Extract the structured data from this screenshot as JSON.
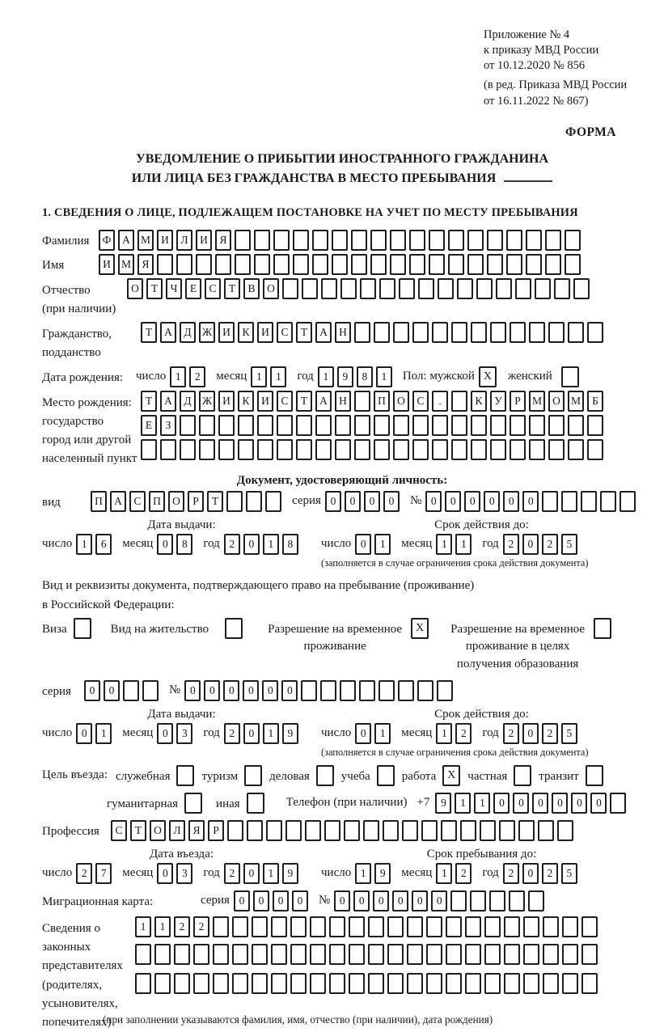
{
  "header": {
    "appendix_line1": "Приложение № 4",
    "appendix_line2": "к приказу МВД России",
    "appendix_line3": "от 10.12.2020 № 856",
    "revision_line1": "(в ред. Приказа МВД России",
    "revision_line2": "от 16.11.2022 № 867)",
    "form_label": "ФОРМА"
  },
  "title": {
    "line1": "УВЕДОМЛЕНИЕ О ПРИБЫТИИ ИНОСТРАННОГО ГРАЖДАНИНА",
    "line2": "ИЛИ ЛИЦА БЕЗ ГРАЖДАНСТВА В МЕСТО ПРЕБЫВАНИЯ"
  },
  "section1_heading": "1. СВЕДЕНИЯ О ЛИЦЕ, ПОДЛЕЖАЩЕМ ПОСТАНОВКЕ НА УЧЕТ ПО МЕСТУ ПРЕБЫВАНИЯ",
  "date_labels": {
    "day": "число",
    "month": "месяц",
    "year": "год"
  },
  "surname": {
    "label": "Фамилия",
    "value": "ФАМИЛИЯ"
  },
  "firstname": {
    "label": "Имя",
    "value": "ИМЯ"
  },
  "patronymic": {
    "label1": "Отчество",
    "label2": "(при наличии)",
    "value": "ОТЧЕСТВО"
  },
  "citizenship": {
    "label1": "Гражданство,",
    "label2": "подданство",
    "value": "ТАДЖИКИСТАН"
  },
  "birth_date": {
    "label": "Дата рождения:",
    "day": "12",
    "month": "11",
    "year": "1981",
    "sex_label": "Пол: мужской",
    "male_value": "X",
    "female_label": "женский",
    "female_value": ""
  },
  "birth_place": {
    "label1": "Место рождения:",
    "label2": "государство",
    "label3": "город или другой",
    "label4": "населенный пункт",
    "row1": "ТАДЖИКИСТАН ПОС. КУРМОМБ",
    "row2": "ЕЗ",
    "row3": ""
  },
  "identity_doc": {
    "heading": "Документ, удостоверяющий личность:",
    "kind_label": "вид",
    "kind_value": "ПАСПОРТ",
    "series_label": "серия",
    "series_value": "0000",
    "number_label": "№",
    "number_value": "000000",
    "issue_heading": "Дата выдачи:",
    "issue": {
      "day": "16",
      "month": "08",
      "year": "2018"
    },
    "expiry_heading": "Срок действия до:",
    "expiry": {
      "day": "01",
      "month": "11",
      "year": "2025"
    },
    "expiry_note": "(заполняется в случае ограничения срока действия документа)"
  },
  "residence_doc": {
    "intro_line1": "Вид и реквизиты документа, подтверждающего право на пребывание (проживание)",
    "intro_line2": "в Российской Федерации:",
    "options": [
      {
        "label": "Виза",
        "value": ""
      },
      {
        "label": "Вид на жительство",
        "value": ""
      },
      {
        "label": "Разрешение на временное проживание",
        "value": "X"
      },
      {
        "label": "Разрешение на временное проживание в целях получения образования",
        "value": ""
      }
    ],
    "series_label": "серия",
    "series_value": "00",
    "number_label": "№",
    "number_value": "000000",
    "issue_heading": "Дата выдачи:",
    "issue": {
      "day": "01",
      "month": "03",
      "year": "2019"
    },
    "expiry_heading": "Срок действия до:",
    "expiry": {
      "day": "01",
      "month": "12",
      "year": "2025"
    },
    "expiry_note": "(заполняется в случае ограничения срока действия документа)"
  },
  "visit_purpose": {
    "label": "Цель въезда:",
    "options_row1": [
      {
        "label": "служебная",
        "value": ""
      },
      {
        "label": "туризм",
        "value": ""
      },
      {
        "label": "деловая",
        "value": ""
      },
      {
        "label": "учеба",
        "value": ""
      },
      {
        "label": "работа",
        "value": "X"
      },
      {
        "label": "частная",
        "value": ""
      },
      {
        "label": "транзит",
        "value": ""
      }
    ],
    "options_row2": [
      {
        "label": "гуманитарная",
        "value": ""
      },
      {
        "label": "иная",
        "value": ""
      }
    ],
    "phone_label": "Телефон (при наличии)",
    "phone_prefix": "+7",
    "phone_value": "911000000"
  },
  "profession": {
    "label": "Профессия",
    "value": "СТОЛЯР"
  },
  "entry": {
    "date_heading": "Дата въезда:",
    "date": {
      "day": "27",
      "month": "03",
      "year": "2019"
    },
    "stay_heading": "Срок пребывания до:",
    "stay": {
      "day": "19",
      "month": "12",
      "year": "2025"
    }
  },
  "migration_card": {
    "label": "Миграционная карта:",
    "series_label": "серия",
    "series_value": "0000",
    "number_label": "№",
    "number_value": "000000"
  },
  "representatives": {
    "label1": "Сведения о",
    "label2": "законных",
    "label3": "представителях",
    "label4": "(родителях,",
    "label5": "усыновителях,",
    "label6": "попечителях)",
    "row1": "1122",
    "row2": "",
    "row3": "",
    "note": "(при заполнении указываются фамилия, имя, отчество (при наличии), дата рождения)"
  }
}
